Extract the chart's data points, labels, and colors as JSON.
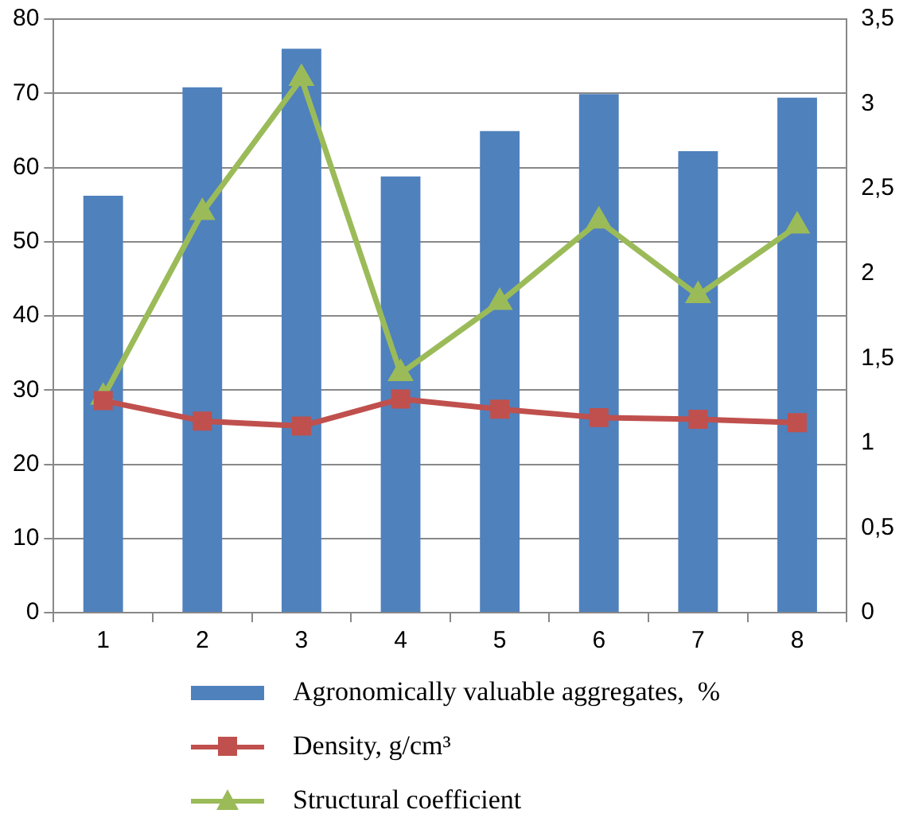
{
  "chart_data": {
    "type": "bar",
    "categories": [
      "1",
      "2",
      "3",
      "4",
      "5",
      "6",
      "7",
      "8"
    ],
    "series": [
      {
        "name": "Agronomically valuable aggregates,  %",
        "color": "#4f81bd",
        "values": [
          56.2,
          70.8,
          76.0,
          58.8,
          64.9,
          69.9,
          62.2,
          69.4
        ]
      },
      {
        "name": "Density, g/cm³",
        "type": "line",
        "axis": "y2",
        "marker": "square",
        "color": "#c0504d",
        "values": [
          1.25,
          1.13,
          1.1,
          1.26,
          1.2,
          1.15,
          1.14,
          1.12
        ]
      },
      {
        "name": "Structural coefficient",
        "type": "line",
        "axis": "y2",
        "marker": "triangle",
        "color": "#9bbb59",
        "values": [
          1.27,
          2.36,
          3.15,
          1.41,
          1.83,
          2.31,
          1.87,
          2.28
        ]
      }
    ],
    "ylim": [
      0,
      80
    ],
    "yticks": [
      0,
      10,
      20,
      30,
      40,
      50,
      60,
      70,
      80
    ],
    "y2lim": [
      0,
      3.5
    ],
    "y2ticks": [
      0,
      {
        "value": 0.5,
        "label": "0,5"
      },
      1,
      {
        "value": 1.5,
        "label": "1,5"
      },
      2,
      {
        "value": 2.5,
        "label": "2,5"
      },
      3,
      {
        "value": 3.5,
        "label": "3,5"
      }
    ],
    "grid": "y",
    "legend": "bottom"
  }
}
